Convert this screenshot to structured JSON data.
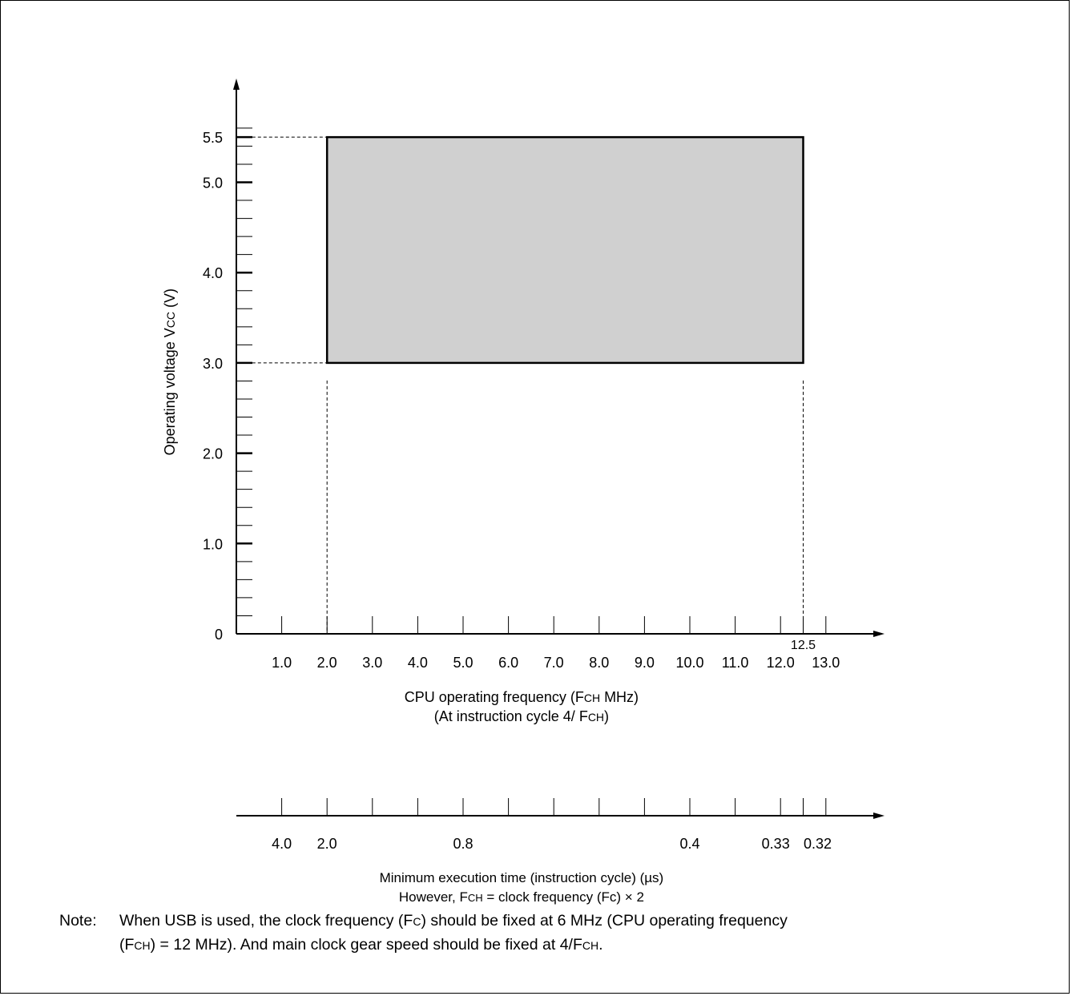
{
  "chart_data": {
    "type": "area",
    "title": "",
    "ylabel": {
      "prefix": "Operating voltage V",
      "sub": "CC",
      "suffix": " (V)"
    },
    "xlabel": {
      "line1": {
        "prefix": "CPU operating frequency (F",
        "sub": "CH",
        "suffix": " MHz)"
      },
      "line2": {
        "prefix": "(At instruction cycle 4/ F",
        "sub": "CH",
        "suffix": ")"
      }
    },
    "x2label": {
      "line1": "Minimum execution time (instruction cycle) (µs)",
      "line2": {
        "prefix": "However, F",
        "sub": "CH",
        "suffix": " = clock frequency (Fc) × 2"
      }
    },
    "xlim": [
      0,
      13.7
    ],
    "ylim": [
      0,
      5.7
    ],
    "y_ticks": [
      {
        "value": 0,
        "label": "0"
      },
      {
        "value": 1.0,
        "label": "1.0"
      },
      {
        "value": 2.0,
        "label": "2.0"
      },
      {
        "value": 3.0,
        "label": "3.0"
      },
      {
        "value": 4.0,
        "label": "4.0"
      },
      {
        "value": 5.0,
        "label": "5.0"
      },
      {
        "value": 5.5,
        "label": "5.5"
      }
    ],
    "y_minor_step": 0.2,
    "x_ticks": [
      {
        "value": 1.0,
        "label": "1.0"
      },
      {
        "value": 2.0,
        "label": "2.0"
      },
      {
        "value": 3.0,
        "label": "3.0"
      },
      {
        "value": 4.0,
        "label": "4.0"
      },
      {
        "value": 5.0,
        "label": "5.0"
      },
      {
        "value": 6.0,
        "label": "6.0"
      },
      {
        "value": 7.0,
        "label": "7.0"
      },
      {
        "value": 8.0,
        "label": "8.0"
      },
      {
        "value": 9.0,
        "label": "9.0"
      },
      {
        "value": 10.0,
        "label": "10.0"
      },
      {
        "value": 11.0,
        "label": "11.0"
      },
      {
        "value": 12.0,
        "label": "12.0"
      },
      {
        "value": 13.0,
        "label": "13.0"
      }
    ],
    "x_extra_tick": {
      "value": 12.5,
      "label": "12.5"
    },
    "x2_ticks": [
      1,
      2,
      3,
      4,
      5,
      6,
      7,
      8,
      9,
      10,
      11,
      12,
      12.5,
      13
    ],
    "x2_labels": [
      {
        "value": 1.0,
        "label": "4.0"
      },
      {
        "value": 2.0,
        "label": "2.0"
      },
      {
        "value": 5.0,
        "label": "0.8"
      },
      {
        "value": 10.0,
        "label": "0.4"
      },
      {
        "value": 12.0,
        "label": "0.33"
      },
      {
        "value": 12.5,
        "label": "0.32"
      }
    ],
    "region": {
      "x": [
        2.0,
        12.5
      ],
      "y": [
        3.0,
        5.5
      ],
      "fill": "#d0d0d0"
    }
  },
  "note": {
    "label": "Note:",
    "line1": "When USB is used, the clock frequency (F",
    "line1_sub": "C",
    "line1_rest": ") should be fixed at 6 MHz (CPU operating frequency",
    "line2_a": "(F",
    "line2_sub1": "CH",
    "line2_b": ") = 12 MHz). And main clock gear speed should be fixed at 4/F",
    "line2_sub2": "CH",
    "line2_c": "."
  }
}
